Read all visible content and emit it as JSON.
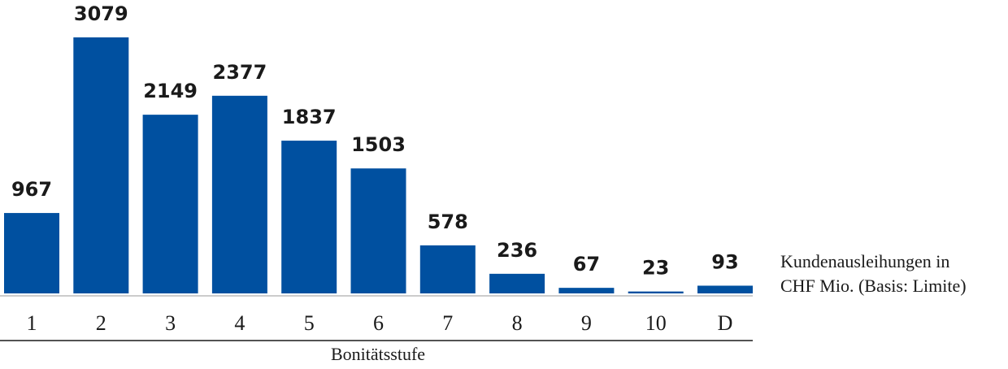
{
  "chart_data": {
    "type": "bar",
    "categories": [
      "1",
      "2",
      "3",
      "4",
      "5",
      "6",
      "7",
      "8",
      "9",
      "10",
      "D"
    ],
    "values": [
      967,
      3079,
      2149,
      2377,
      1837,
      1503,
      578,
      236,
      67,
      23,
      93
    ],
    "color": "#0050a0",
    "x_label": "Bonitätsstufe",
    "value_note": [
      "Kundenausleihungen in",
      "CHF Mio. (Basis: Limite)"
    ]
  }
}
